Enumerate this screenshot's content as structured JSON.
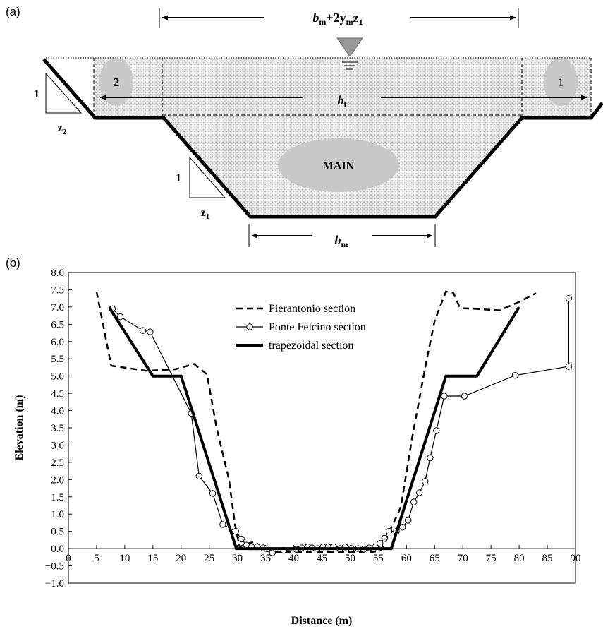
{
  "diagram": {
    "panel_label": "(a)",
    "top_width_label": {
      "base": "b",
      "sub": "m",
      "tail": "+2y",
      "sub2": "m",
      "tail2": "z",
      "sub3": "1"
    },
    "floodplain_width_label": {
      "base": "b",
      "sub": "f"
    },
    "main_width_label": {
      "base": "b",
      "sub": "m"
    },
    "main_label": "MAIN",
    "left_floodplain_label": "2",
    "right_floodplain_label": "1",
    "slope_left_vertical": "1",
    "slope_left_horizontal": {
      "base": "z",
      "sub": "2"
    },
    "slope_main_vertical": "1",
    "slope_main_horizontal": {
      "base": "z",
      "sub": "1"
    },
    "colors": {
      "water": "#d0d0d0",
      "zone": "#c8c8c8",
      "line": "#000000"
    }
  },
  "chart_data": {
    "panel_label": "(b)",
    "type": "line",
    "xlabel": "Distance (m)",
    "ylabel": "Elevation (m)",
    "xlim": [
      0,
      90
    ],
    "ylim": [
      -1.0,
      8.0
    ],
    "x_ticks": [
      0,
      5,
      10,
      15,
      20,
      25,
      30,
      35,
      40,
      45,
      50,
      55,
      60,
      65,
      70,
      75,
      80,
      85,
      90
    ],
    "y_ticks": [
      -1.0,
      -0.5,
      0.0,
      0.5,
      1.0,
      1.5,
      2.0,
      2.5,
      3.0,
      3.5,
      4.0,
      4.5,
      5.0,
      5.5,
      6.0,
      6.5,
      7.0,
      7.5,
      8.0
    ],
    "x_tick_labels": [
      "0",
      "5",
      "10",
      "15",
      "20",
      "25",
      "30",
      "35",
      "40",
      "45",
      "50",
      "55",
      "60",
      "65",
      "70",
      "75",
      "80",
      "85",
      "90"
    ],
    "y_tick_labels": [
      "−1.0",
      "−0.5",
      "0.0",
      "0.5",
      "1.0",
      "1.5",
      "2.0",
      "2.5",
      "3.0",
      "3.5",
      "4.0",
      "4.5",
      "5.0",
      "5.5",
      "6.0",
      "6.5",
      "7.0",
      "7.5",
      "8.0"
    ],
    "grid": false,
    "legend_position": "top-center",
    "series": [
      {
        "name": "Pierantonio section",
        "style": "dashed",
        "x": [
          5,
          7.6,
          14,
          19,
          22.3,
          24.6,
          26.3,
          28.5,
          29.6,
          30.4,
          31.8,
          33.2,
          34.5,
          36.2,
          40,
          45,
          50,
          54,
          55.5,
          57,
          59,
          61,
          63.5,
          65,
          67,
          68.3,
          69.5,
          72,
          76.5,
          80,
          83
        ],
        "y": [
          7.45,
          5.3,
          5.15,
          5.2,
          5.35,
          5.05,
          3.5,
          2.0,
          0.65,
          0.05,
          0.15,
          0.2,
          -0.05,
          -0.1,
          -0.1,
          -0.1,
          -0.1,
          -0.1,
          -0.05,
          0.5,
          1.2,
          3.2,
          5.4,
          6.6,
          7.45,
          7.42,
          6.97,
          6.95,
          6.9,
          7.15,
          7.4
        ]
      },
      {
        "name": "Ponte Felcino section",
        "style": "line-with-markers",
        "x": [
          7.8,
          9.2,
          13.2,
          14.5,
          21.8,
          23.2,
          25.6,
          27.4,
          29.7,
          30.7,
          31.6,
          32.5,
          33.5,
          34.6,
          35.2,
          36.2,
          38.2,
          40.4,
          41.4,
          42.5,
          43.2,
          44.2,
          45.2,
          46.1,
          47.1,
          48.2,
          49.1,
          50.2,
          51.4,
          52.4,
          53.4,
          54.5,
          55.3,
          56.1,
          56.9,
          58.2,
          59.3,
          60.3,
          61.3,
          62.3,
          63.3,
          64.2,
          65.3,
          66.7,
          70.3,
          79.3,
          88.8,
          88.8
        ],
        "y": [
          6.95,
          6.72,
          6.32,
          6.28,
          3.92,
          2.1,
          1.6,
          0.7,
          0.5,
          0.28,
          0.1,
          0.05,
          0.05,
          0.02,
          0.0,
          -0.12,
          -0.05,
          -0.02,
          0.02,
          0.05,
          0.02,
          0.0,
          0.05,
          0.05,
          0.05,
          0.0,
          0.05,
          0.0,
          0.0,
          -0.02,
          0.02,
          0.05,
          0.15,
          0.3,
          0.5,
          0.5,
          0.62,
          0.82,
          1.35,
          1.62,
          1.95,
          2.63,
          3.42,
          4.42,
          4.42,
          5.02,
          5.28,
          7.25
        ]
      },
      {
        "name": "trapezoidal section",
        "style": "thick",
        "x": [
          7.2,
          15,
          20,
          29.8,
          57.3,
          67,
          72.5,
          80
        ],
        "y": [
          7.0,
          5.0,
          5.0,
          0.0,
          0.0,
          5.0,
          5.0,
          7.0
        ]
      }
    ]
  }
}
